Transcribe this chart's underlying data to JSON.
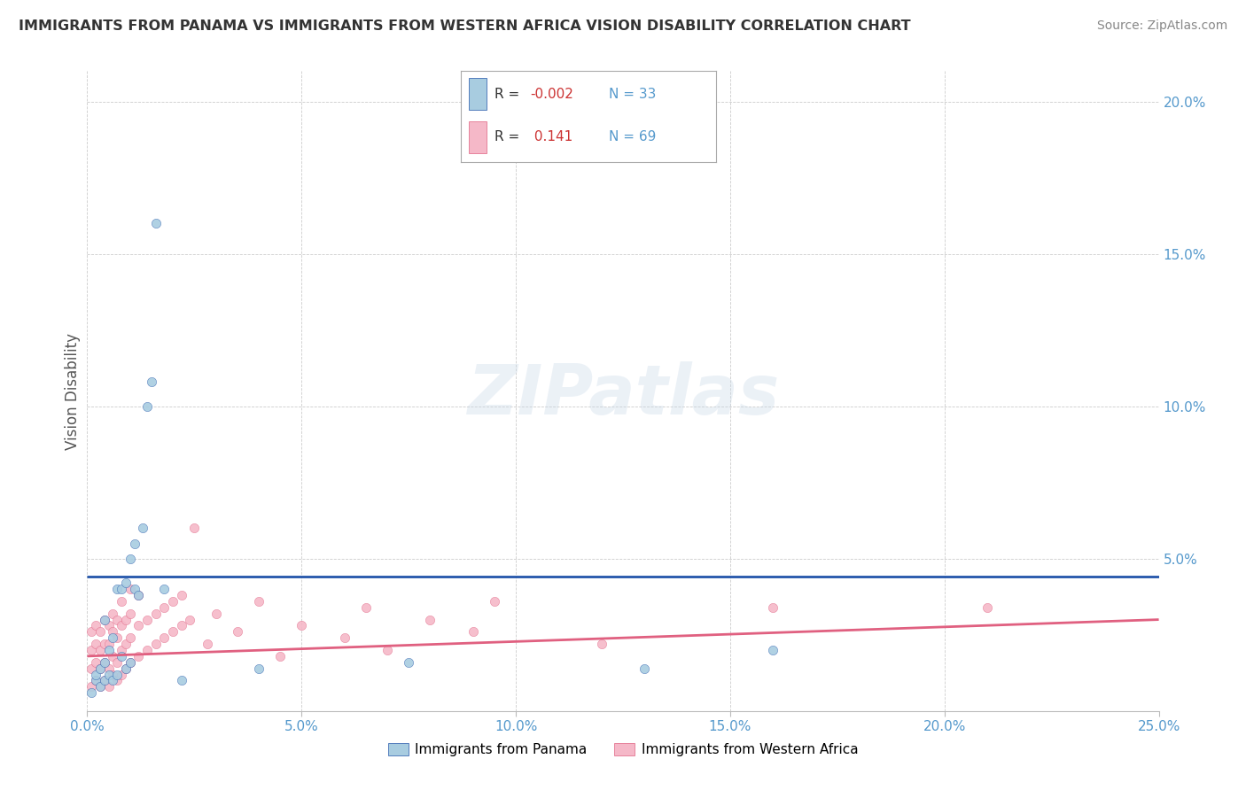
{
  "title": "IMMIGRANTS FROM PANAMA VS IMMIGRANTS FROM WESTERN AFRICA VISION DISABILITY CORRELATION CHART",
  "source": "Source: ZipAtlas.com",
  "ylabel": "Vision Disability",
  "xlim": [
    0.0,
    0.25
  ],
  "ylim": [
    0.0,
    0.21
  ],
  "xtick_labels": [
    "0.0%",
    "5.0%",
    "10.0%",
    "15.0%",
    "20.0%",
    "25.0%"
  ],
  "xtick_vals": [
    0.0,
    0.05,
    0.1,
    0.15,
    0.2,
    0.25
  ],
  "ytick_vals": [
    0.0,
    0.05,
    0.1,
    0.15,
    0.2
  ],
  "ytick_labels_right": [
    "",
    "5.0%",
    "10.0%",
    "15.0%",
    "20.0%"
  ],
  "legend1_label": "Immigrants from Panama",
  "legend2_label": "Immigrants from Western Africa",
  "r1": "-0.002",
  "n1": "33",
  "r2": "0.141",
  "n2": "69",
  "color_blue": "#a8cce0",
  "color_pink": "#f5b8c8",
  "color_line_blue": "#2255aa",
  "color_line_pink": "#e06080",
  "background": "#ffffff",
  "scatter_panama": [
    [
      0.001,
      0.006
    ],
    [
      0.002,
      0.01
    ],
    [
      0.002,
      0.012
    ],
    [
      0.003,
      0.008
    ],
    [
      0.003,
      0.014
    ],
    [
      0.004,
      0.01
    ],
    [
      0.004,
      0.016
    ],
    [
      0.004,
      0.03
    ],
    [
      0.005,
      0.012
    ],
    [
      0.005,
      0.02
    ],
    [
      0.006,
      0.01
    ],
    [
      0.006,
      0.024
    ],
    [
      0.007,
      0.012
    ],
    [
      0.007,
      0.04
    ],
    [
      0.008,
      0.018
    ],
    [
      0.008,
      0.04
    ],
    [
      0.009,
      0.014
    ],
    [
      0.009,
      0.042
    ],
    [
      0.01,
      0.016
    ],
    [
      0.01,
      0.05
    ],
    [
      0.011,
      0.04
    ],
    [
      0.011,
      0.055
    ],
    [
      0.012,
      0.038
    ],
    [
      0.013,
      0.06
    ],
    [
      0.014,
      0.1
    ],
    [
      0.015,
      0.108
    ],
    [
      0.016,
      0.16
    ],
    [
      0.018,
      0.04
    ],
    [
      0.022,
      0.01
    ],
    [
      0.04,
      0.014
    ],
    [
      0.075,
      0.016
    ],
    [
      0.13,
      0.014
    ],
    [
      0.16,
      0.02
    ]
  ],
  "scatter_western_africa": [
    [
      0.001,
      0.008
    ],
    [
      0.001,
      0.014
    ],
    [
      0.001,
      0.02
    ],
    [
      0.001,
      0.026
    ],
    [
      0.002,
      0.01
    ],
    [
      0.002,
      0.016
    ],
    [
      0.002,
      0.022
    ],
    [
      0.002,
      0.028
    ],
    [
      0.003,
      0.008
    ],
    [
      0.003,
      0.014
    ],
    [
      0.003,
      0.02
    ],
    [
      0.003,
      0.026
    ],
    [
      0.004,
      0.01
    ],
    [
      0.004,
      0.016
    ],
    [
      0.004,
      0.022
    ],
    [
      0.004,
      0.03
    ],
    [
      0.005,
      0.008
    ],
    [
      0.005,
      0.014
    ],
    [
      0.005,
      0.022
    ],
    [
      0.005,
      0.028
    ],
    [
      0.006,
      0.012
    ],
    [
      0.006,
      0.018
    ],
    [
      0.006,
      0.026
    ],
    [
      0.006,
      0.032
    ],
    [
      0.007,
      0.01
    ],
    [
      0.007,
      0.016
    ],
    [
      0.007,
      0.024
    ],
    [
      0.007,
      0.03
    ],
    [
      0.008,
      0.012
    ],
    [
      0.008,
      0.02
    ],
    [
      0.008,
      0.028
    ],
    [
      0.008,
      0.036
    ],
    [
      0.009,
      0.014
    ],
    [
      0.009,
      0.022
    ],
    [
      0.009,
      0.03
    ],
    [
      0.01,
      0.016
    ],
    [
      0.01,
      0.024
    ],
    [
      0.01,
      0.032
    ],
    [
      0.01,
      0.04
    ],
    [
      0.012,
      0.018
    ],
    [
      0.012,
      0.028
    ],
    [
      0.012,
      0.038
    ],
    [
      0.014,
      0.02
    ],
    [
      0.014,
      0.03
    ],
    [
      0.016,
      0.022
    ],
    [
      0.016,
      0.032
    ],
    [
      0.018,
      0.024
    ],
    [
      0.018,
      0.034
    ],
    [
      0.02,
      0.026
    ],
    [
      0.02,
      0.036
    ],
    [
      0.022,
      0.028
    ],
    [
      0.022,
      0.038
    ],
    [
      0.024,
      0.03
    ],
    [
      0.025,
      0.06
    ],
    [
      0.028,
      0.022
    ],
    [
      0.03,
      0.032
    ],
    [
      0.035,
      0.026
    ],
    [
      0.04,
      0.036
    ],
    [
      0.045,
      0.018
    ],
    [
      0.05,
      0.028
    ],
    [
      0.06,
      0.024
    ],
    [
      0.065,
      0.034
    ],
    [
      0.07,
      0.02
    ],
    [
      0.08,
      0.03
    ],
    [
      0.09,
      0.026
    ],
    [
      0.095,
      0.036
    ],
    [
      0.12,
      0.022
    ],
    [
      0.16,
      0.034
    ],
    [
      0.21,
      0.034
    ]
  ],
  "line_panama_y_start": 0.044,
  "line_panama_y_end": 0.044,
  "line_wa_y_start": 0.018,
  "line_wa_y_end": 0.03
}
